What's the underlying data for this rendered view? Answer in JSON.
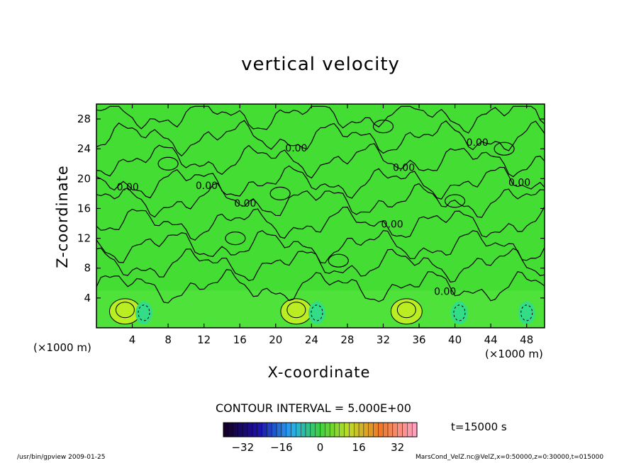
{
  "chart_data": {
    "type": "heatmap",
    "title": "vertical velocity",
    "xlabel": "X-coordinate",
    "ylabel": "Z-coordinate",
    "x_unit": "(×1000 m)",
    "y_unit": "(×1000 m)",
    "xlim": [
      0,
      50
    ],
    "ylim": [
      0,
      30
    ],
    "x_ticks": [
      4,
      8,
      12,
      16,
      20,
      24,
      28,
      32,
      36,
      40,
      44,
      48
    ],
    "y_ticks": [
      4,
      8,
      12,
      16,
      20,
      24,
      28
    ],
    "contour_interval_text": "CONTOUR INTERVAL = 5.000E+00",
    "contour_labels": [
      "0.00",
      "0.00",
      "0.00",
      "0.00",
      "0.00",
      "0.00",
      "0.00",
      "0.00",
      "0.00"
    ],
    "colorbar": {
      "min": -40,
      "max": 40,
      "ticks": [
        -32,
        -16,
        0,
        16,
        32
      ],
      "colormap": "rainbow",
      "colors": {
        "low": "#1a0033",
        "mid": "#33cc33",
        "high": "#ff99bb"
      }
    },
    "time_label": "t=15000 s",
    "updraft_cores_x": [
      3.2,
      22.3,
      34.6
    ],
    "downdraft_cores_x": [
      5.3,
      24.6,
      40.5,
      48.0
    ],
    "field_color": "#44dd33",
    "updraft_color": "#bbee22",
    "downdraft_color": "#33dd88"
  },
  "footer": {
    "left": "/usr/bin/gpview   2009-01-25",
    "right": "MarsCond_VelZ.nc@VelZ,x=0:50000,z=0:30000,t=015000"
  }
}
